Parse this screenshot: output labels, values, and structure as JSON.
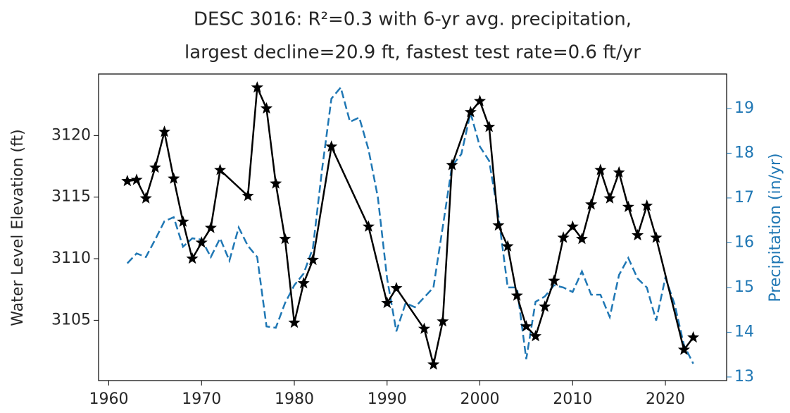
{
  "chart_data": {
    "type": "line",
    "title": [
      "DESC 3016: R²=0.3 with 6-yr avg. precipitation,",
      "largest decline=20.9 ft, fastest test rate=0.6 ft/yr"
    ],
    "ylabel": "Water Level Elevation (ft)",
    "y2label": "Precipitation (in/yr)",
    "xlim": [
      1958.9,
      2026.6
    ],
    "xticks": [
      1960,
      1970,
      1980,
      1990,
      2000,
      2010,
      2020
    ],
    "ylim": [
      3100.1,
      3125.0
    ],
    "yticks": [
      3105,
      3110,
      3115,
      3120
    ],
    "y2lim": [
      12.92,
      19.77
    ],
    "y2ticks": [
      13,
      14,
      15,
      16,
      17,
      18,
      19
    ],
    "y2color": "#1f77b4",
    "series": [
      {
        "color": "#000000",
        "marker": "star",
        "dashed": false,
        "x": [
          1962,
          1963,
          1964,
          1965,
          1966,
          1967,
          1968,
          1969,
          1970,
          1971,
          1972,
          1975,
          1976,
          1977,
          1978,
          1979,
          1980,
          1981,
          1982,
          1984,
          1988,
          1990,
          1991,
          1994,
          1995,
          1996,
          1997,
          1999,
          2000,
          2001,
          2002,
          2003,
          2004,
          2005,
          2006,
          2007,
          2008,
          2009,
          2010,
          2011,
          2012,
          2013,
          2014,
          2015,
          2016,
          2017,
          2018,
          2019,
          2022,
          2023
        ],
        "values": [
          3116.3,
          3116.4,
          3114.9,
          3117.4,
          3120.3,
          3116.5,
          3113.0,
          3110.0,
          3111.3,
          3112.5,
          3117.2,
          3115.1,
          3123.9,
          3122.2,
          3116.1,
          3111.6,
          3104.8,
          3108.0,
          3109.9,
          3119.1,
          3112.6,
          3106.4,
          3107.6,
          3104.3,
          3101.4,
          3104.9,
          3117.6,
          3121.9,
          3122.8,
          3120.7,
          3112.7,
          3111.0,
          3107.0,
          3104.5,
          3103.7,
          3106.1,
          3108.2,
          3111.7,
          3112.6,
          3111.6,
          3114.4,
          3117.2,
          3114.9,
          3117.0,
          3114.2,
          3111.9,
          3114.3,
          3111.7,
          3102.6,
          3103.6
        ]
      },
      {
        "color": "#1f77b4",
        "marker": "none",
        "dashed": true,
        "axis": "y2",
        "x": [
          1962,
          1963,
          1964,
          1965,
          1966,
          1967,
          1968,
          1969,
          1970,
          1971,
          1972,
          1973,
          1974,
          1975,
          1976,
          1977,
          1978,
          1979,
          1980,
          1981,
          1982,
          1983,
          1984,
          1985,
          1986,
          1987,
          1988,
          1989,
          1990,
          1991,
          1992,
          1993,
          1994,
          1995,
          1996,
          1997,
          1998,
          1999,
          2000,
          2001,
          2002,
          2003,
          2004,
          2005,
          2006,
          2007,
          2008,
          2009,
          2010,
          2011,
          2012,
          2013,
          2014,
          2015,
          2016,
          2017,
          2018,
          2019,
          2020,
          2021,
          2022,
          2023
        ],
        "values": [
          15.54,
          15.76,
          15.68,
          16.07,
          16.48,
          16.57,
          15.91,
          16.1,
          16.07,
          15.68,
          16.1,
          15.6,
          16.34,
          15.93,
          15.68,
          14.13,
          14.1,
          14.65,
          15.05,
          15.31,
          15.88,
          17.65,
          19.22,
          19.47,
          18.7,
          18.8,
          18.08,
          17.02,
          15.2,
          14.02,
          14.65,
          14.56,
          14.78,
          15.0,
          16.35,
          17.72,
          17.98,
          18.9,
          18.15,
          17.83,
          16.6,
          15.0,
          15.0,
          13.4,
          14.68,
          14.8,
          15.05,
          15.0,
          14.9,
          15.36,
          14.84,
          14.84,
          14.34,
          15.28,
          15.66,
          15.2,
          15.0,
          14.26,
          15.22,
          14.62,
          13.71,
          13.3
        ]
      }
    ]
  }
}
